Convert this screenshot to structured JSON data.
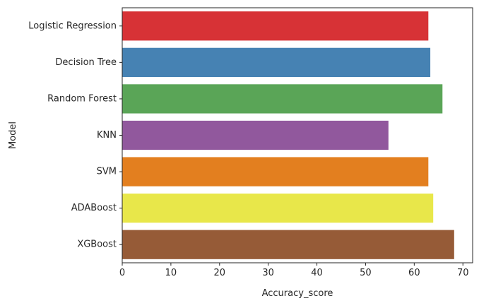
{
  "chart_data": {
    "type": "bar",
    "orientation": "horizontal",
    "categories": [
      "Logistic Regression",
      "Decision Tree",
      "Random Forest",
      "KNN",
      "SVM",
      "ADABoost",
      "XGBoost"
    ],
    "values": [
      62.9,
      63.3,
      65.8,
      54.7,
      62.9,
      63.9,
      68.2
    ],
    "colors": [
      "#d73236",
      "#4682b3",
      "#5aa557",
      "#91589d",
      "#e37f1f",
      "#e8e74a",
      "#965b37"
    ],
    "xlabel": "Accuracy_score",
    "ylabel": "Model",
    "xlim": [
      0,
      72
    ],
    "xticks": [
      0,
      10,
      20,
      30,
      40,
      50,
      60,
      70
    ],
    "grid": false
  }
}
